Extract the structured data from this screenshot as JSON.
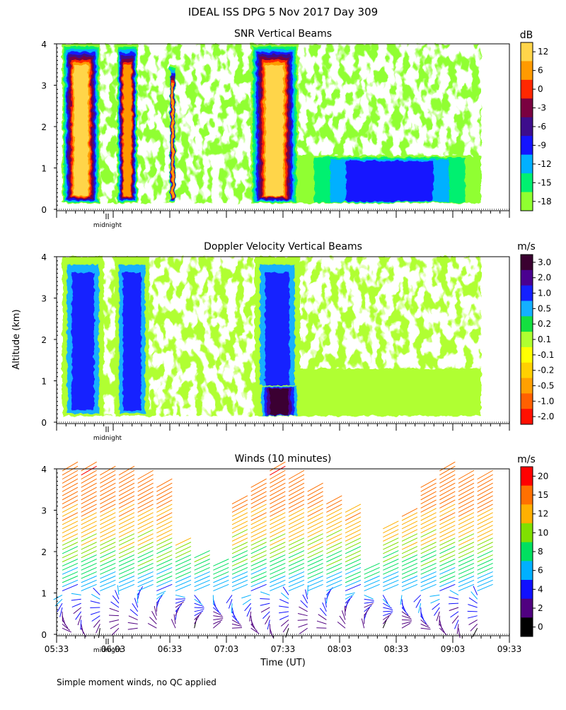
{
  "title": "IDEAL ISS DPG    5 Nov 2017 Day 309",
  "footnote": "Simple moment winds, no QC applied",
  "y_axis_label": "Altitude (km)",
  "x_axis_label": "Time (UT)",
  "midnight_label": "midnight",
  "y_ticks": [
    "0",
    "1",
    "2",
    "3",
    "4"
  ],
  "x_ticks": [
    "05:33",
    "06:03",
    "06:33",
    "07:03",
    "07:33",
    "08:03",
    "08:33",
    "09:03",
    "09:33"
  ],
  "panels": [
    {
      "title": "SNR Vertical Beams",
      "unit": "dB",
      "colorbar_labels": [
        "12",
        "6",
        "0",
        "-3",
        "-6",
        "-9",
        "-12",
        "-15",
        "-18"
      ],
      "colors": [
        "#ffd54a",
        "#ff9a00",
        "#ff2800",
        "#7a0040",
        "#3d0d8c",
        "#1414ff",
        "#00b0ff",
        "#00f070",
        "#90ff30"
      ]
    },
    {
      "title": "Doppler Velocity Vertical Beams",
      "unit": "m/s",
      "colorbar_labels": [
        "3.0",
        "2.0",
        "1.0",
        "0.5",
        "0.2",
        "0.1",
        "-0.1",
        "-0.2",
        "-0.5",
        "-1.0",
        "-2.0"
      ],
      "colors": [
        "#3a0030",
        "#4a0090",
        "#1420ff",
        "#14b0ff",
        "#14e040",
        "#b0ff30",
        "#ffff00",
        "#ffd000",
        "#ffa000",
        "#ff6000",
        "#ff1000"
      ]
    },
    {
      "title": "Winds (10 minutes)",
      "unit": "m/s",
      "colorbar_labels": [
        "20",
        "15",
        "12",
        "10",
        "8",
        "6",
        "4",
        "2",
        "0"
      ],
      "colors": [
        "#ff0000",
        "#ff7000",
        "#ffb000",
        "#80e000",
        "#00e060",
        "#00b0ff",
        "#1010ff",
        "#500080",
        "#000000"
      ]
    }
  ],
  "chart_data": [
    {
      "type": "heatmap",
      "title": "SNR Vertical Beams",
      "x_range": [
        "05:33",
        "09:33"
      ],
      "ylim": [
        0,
        4
      ],
      "unit": "dB",
      "legend": "right colorbar",
      "scale": [
        -18,
        -15,
        -12,
        -9,
        -6,
        -3,
        0,
        6,
        12
      ],
      "features": [
        {
          "x_start": "05:36",
          "x_end": "05:56",
          "y_top": 4,
          "peak_db": 12
        },
        {
          "x_start": "06:05",
          "x_end": "06:16",
          "y_top": 4,
          "peak_db": 6
        },
        {
          "x_start": "06:33",
          "x_end": "06:36",
          "y_top": 3.5,
          "peak_db": 6
        },
        {
          "x_start": "07:16",
          "x_end": "07:41",
          "y_top": 4,
          "peak_db": 12
        },
        {
          "x_start": "07:41",
          "x_end": "09:18",
          "y_top": 1.3,
          "peak_db": -9
        }
      ]
    },
    {
      "type": "heatmap",
      "title": "Doppler Velocity Vertical Beams",
      "x_range": [
        "05:33",
        "09:33"
      ],
      "ylim": [
        0,
        4
      ],
      "unit": "m/s",
      "legend": "right colorbar",
      "scale": [
        -2.0,
        -1.0,
        -0.5,
        -0.2,
        -0.1,
        0.1,
        0.2,
        0.5,
        1.0,
        2.0,
        3.0
      ],
      "features": [
        {
          "x_start": "05:36",
          "x_end": "05:58",
          "y_top": 4,
          "velocity": 1.0
        },
        {
          "x_start": "06:04",
          "x_end": "06:22",
          "y_top": 4,
          "velocity": 1.0
        },
        {
          "x_start": "07:18",
          "x_end": "07:42",
          "y_top": 4,
          "velocity": 1.0
        },
        {
          "x_start": "07:20",
          "x_end": "07:42",
          "y_top": 0.9,
          "velocity": 3.0
        },
        {
          "x_start": "07:42",
          "x_end": "09:18",
          "y_top": 1.3,
          "velocity": -0.2
        }
      ]
    },
    {
      "type": "scatter",
      "title": "Winds (10 minutes)",
      "x_range": [
        "05:33",
        "09:33"
      ],
      "ylim": [
        0,
        4
      ],
      "unit": "m/s",
      "legend": "right colorbar",
      "scale": [
        0,
        2,
        4,
        6,
        8,
        10,
        12,
        15,
        20
      ],
      "profiles": [
        {
          "time": "05:36",
          "top_km": 4.0
        },
        {
          "time": "05:46",
          "top_km": 4.0
        },
        {
          "time": "05:56",
          "top_km": 3.9
        },
        {
          "time": "06:06",
          "top_km": 3.9
        },
        {
          "time": "06:16",
          "top_km": 3.8
        },
        {
          "time": "06:26",
          "top_km": 3.6
        },
        {
          "time": "06:36",
          "top_km": 2.2
        },
        {
          "time": "06:46",
          "top_km": 1.9
        },
        {
          "time": "06:56",
          "top_km": 1.7
        },
        {
          "time": "07:06",
          "top_km": 3.2
        },
        {
          "time": "07:16",
          "top_km": 3.6
        },
        {
          "time": "07:26",
          "top_km": 4.0
        },
        {
          "time": "07:36",
          "top_km": 3.8
        },
        {
          "time": "07:46",
          "top_km": 3.5
        },
        {
          "time": "07:56",
          "top_km": 3.2
        },
        {
          "time": "08:06",
          "top_km": 3.0
        },
        {
          "time": "08:16",
          "top_km": 1.6
        },
        {
          "time": "08:26",
          "top_km": 2.6
        },
        {
          "time": "08:36",
          "top_km": 2.9
        },
        {
          "time": "08:46",
          "top_km": 3.6
        },
        {
          "time": "08:56",
          "top_km": 4.0
        },
        {
          "time": "09:06",
          "top_km": 3.8
        },
        {
          "time": "09:16",
          "top_km": 3.8
        }
      ]
    }
  ]
}
